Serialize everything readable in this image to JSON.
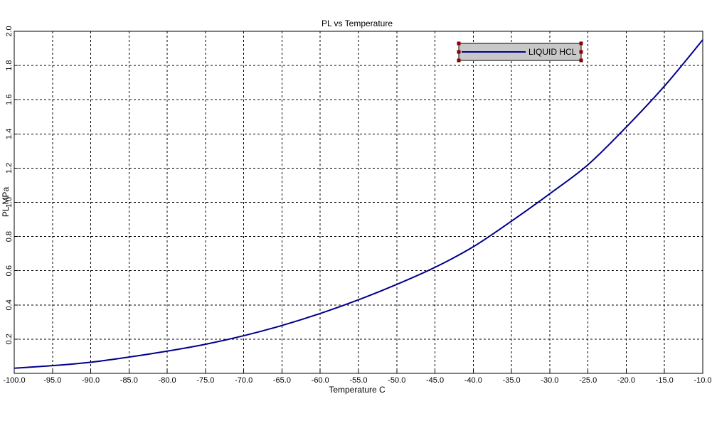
{
  "chart_data": {
    "type": "line",
    "title": "PL vs Temperature",
    "xlabel": "Temperature  C",
    "ylabel": "PL MPa",
    "xlim": [
      -100.0,
      -10.0
    ],
    "ylim": [
      0.0,
      2.0
    ],
    "grid": true,
    "grid_style": "dashed",
    "legend_position": "top-right",
    "x_ticks": [
      -100.0,
      -95.0,
      -90.0,
      -85.0,
      -80.0,
      -75.0,
      -70.0,
      -65.0,
      -60.0,
      -55.0,
      -50.0,
      -45.0,
      -40.0,
      -35.0,
      -30.0,
      -25.0,
      -20.0,
      -15.0,
      -10.0
    ],
    "x_tick_labels": [
      "-100.0",
      "-95.0",
      "-90.0",
      "-85.0",
      "-80.0",
      "-75.0",
      "-70.0",
      "-65.0",
      "-60.0",
      "-55.0",
      "-50.0",
      "-45.0",
      "-40.0",
      "-35.0",
      "-30.0",
      "-25.0",
      "-20.0",
      "-15.0",
      "-10.0"
    ],
    "y_ticks": [
      0.2,
      0.4,
      0.6,
      0.8,
      1.0,
      1.2,
      1.4,
      1.6,
      1.8,
      2.0
    ],
    "y_tick_labels": [
      "0.2",
      "0.4",
      "0.6",
      "0.8",
      "1.0",
      "1.2",
      "1.4",
      "1.6",
      "1.8",
      "2.0"
    ],
    "colors": {
      "line": "#00008b",
      "legend_bg": "#c8c8c8",
      "legend_border": "#8b0000",
      "legend_text": "#0000aa",
      "grid": "#000000"
    },
    "series": [
      {
        "name": "LIQUID HCL",
        "x": [
          -100,
          -95,
          -90,
          -85,
          -80,
          -75,
          -70,
          -65,
          -60,
          -55,
          -50,
          -45,
          -40,
          -35,
          -30,
          -25,
          -20,
          -15,
          -10
        ],
        "y": [
          0.03,
          0.045,
          0.065,
          0.095,
          0.13,
          0.17,
          0.22,
          0.28,
          0.35,
          0.43,
          0.52,
          0.62,
          0.74,
          0.89,
          1.05,
          1.22,
          1.44,
          1.68,
          1.95
        ]
      }
    ]
  }
}
